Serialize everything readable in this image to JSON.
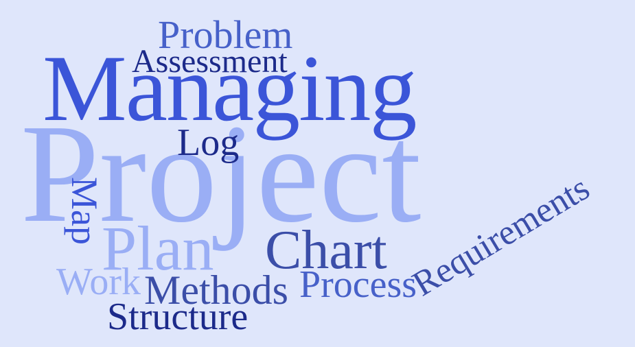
{
  "word_cloud": {
    "words": [
      {
        "text": "Project",
        "color": "#9aaef5"
      },
      {
        "text": "Managing",
        "color": "#3b55d8"
      },
      {
        "text": "Problem",
        "color": "#4761c9"
      },
      {
        "text": "Assessment",
        "color": "#1c2a8a"
      },
      {
        "text": "Log",
        "color": "#1c2a8a"
      },
      {
        "text": "Map",
        "color": "#3b55d8"
      },
      {
        "text": "Plan",
        "color": "#9aaef5"
      },
      {
        "text": "Chart",
        "color": "#3b4ea8"
      },
      {
        "text": "Requirements",
        "color": "#3b4ea8"
      },
      {
        "text": "Work",
        "color": "#9aaef5"
      },
      {
        "text": "Methods",
        "color": "#3b4ea8"
      },
      {
        "text": "Process",
        "color": "#4761c9"
      },
      {
        "text": "Structure",
        "color": "#1c2a8a"
      }
    ]
  }
}
